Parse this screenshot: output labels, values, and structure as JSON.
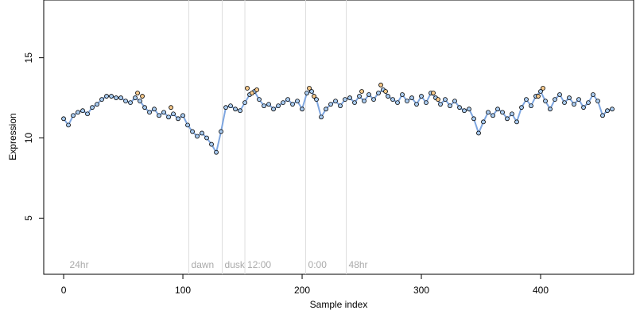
{
  "chart_data": {
    "type": "scatter",
    "x_label": "Sample index",
    "y_label": "Expression",
    "xlim": [
      -16.7,
      478
    ],
    "ylim": [
      1.5,
      18.6
    ],
    "xticks": [
      0,
      100,
      200,
      300,
      400
    ],
    "yticks": [
      5,
      10,
      15
    ],
    "series": [
      {
        "color": "#a9cbf0",
        "line_color": "#7ea6e0",
        "x": [
          0,
          4,
          8,
          12,
          16,
          20,
          24,
          28,
          32,
          36,
          40,
          44,
          48,
          52,
          56,
          60,
          64,
          68,
          72,
          76,
          80,
          84,
          88,
          92,
          96,
          100,
          104,
          108,
          112,
          116,
          120,
          124,
          128,
          132,
          136,
          140,
          144,
          148,
          152,
          156,
          160,
          164,
          168,
          172,
          176,
          180,
          184,
          188,
          192,
          196,
          200,
          204,
          208,
          212,
          216,
          220,
          224,
          228,
          232,
          236,
          240,
          244,
          248,
          252,
          256,
          260,
          264,
          268,
          272,
          276,
          280,
          284,
          288,
          292,
          296,
          300,
          304,
          308,
          312,
          316,
          320,
          324,
          328,
          332,
          336,
          340,
          344,
          348,
          352,
          356,
          360,
          364,
          368,
          372,
          376,
          380,
          384,
          388,
          392,
          396,
          400,
          404,
          408,
          412,
          416,
          420,
          424,
          428,
          432,
          436,
          440,
          444,
          448,
          452,
          456,
          460
        ],
        "values": [
          11.2,
          10.8,
          11.4,
          11.6,
          11.7,
          11.5,
          11.9,
          12.1,
          12.4,
          12.6,
          12.6,
          12.5,
          12.5,
          12.3,
          12.2,
          12.5,
          12.3,
          11.9,
          11.6,
          11.8,
          11.4,
          11.6,
          11.3,
          11.5,
          11.2,
          11.4,
          10.8,
          10.4,
          10.1,
          10.3,
          10.0,
          9.6,
          9.1,
          10.4,
          11.9,
          12.0,
          11.8,
          11.7,
          12.2,
          12.7,
          12.9,
          12.4,
          12.0,
          12.1,
          11.8,
          12.0,
          12.2,
          12.4,
          12.1,
          12.3,
          11.8,
          12.8,
          12.9,
          12.4,
          11.3,
          11.8,
          12.1,
          12.3,
          12.0,
          12.4,
          12.5,
          12.2,
          12.6,
          12.3,
          12.7,
          12.4,
          12.8,
          13.0,
          12.6,
          12.4,
          12.2,
          12.7,
          12.3,
          12.5,
          12.1,
          12.6,
          12.2,
          12.8,
          12.5,
          12.1,
          12.4,
          12.0,
          12.3,
          11.9,
          11.7,
          11.8,
          11.2,
          10.3,
          11.0,
          11.6,
          11.4,
          11.8,
          11.6,
          11.2,
          11.5,
          11.0,
          11.9,
          12.4,
          12.0,
          12.6,
          12.9,
          12.3,
          11.8,
          12.4,
          12.7,
          12.2,
          12.5,
          12.1,
          12.4,
          11.9,
          12.2,
          12.7,
          12.3,
          11.4,
          11.7,
          11.8
        ],
        "line": true
      },
      {
        "color": "#f7c98a",
        "x": [
          62,
          66,
          90,
          154,
          158,
          162,
          206,
          210,
          250,
          266,
          270,
          310,
          314,
          398,
          402
        ],
        "values": [
          12.8,
          12.6,
          11.9,
          13.1,
          12.8,
          13.0,
          13.1,
          12.6,
          12.9,
          13.3,
          12.9,
          12.8,
          12.4,
          12.6,
          13.1
        ],
        "line": false
      }
    ],
    "annotations": [
      {
        "text": "24hr",
        "x": 3,
        "y": 2.1,
        "vline": false
      },
      {
        "text": "dawn",
        "x": 105,
        "y": 2.1,
        "vline": true
      },
      {
        "text": "dusk",
        "x": 133,
        "y": 2.1,
        "vline": true
      },
      {
        "text": "12:00",
        "x": 152,
        "y": 2.1,
        "vline": true
      },
      {
        "text": "0:00",
        "x": 203,
        "y": 2.1,
        "vline": true
      },
      {
        "text": "48hr",
        "x": 237,
        "y": 2.1,
        "vline": true
      }
    ]
  }
}
